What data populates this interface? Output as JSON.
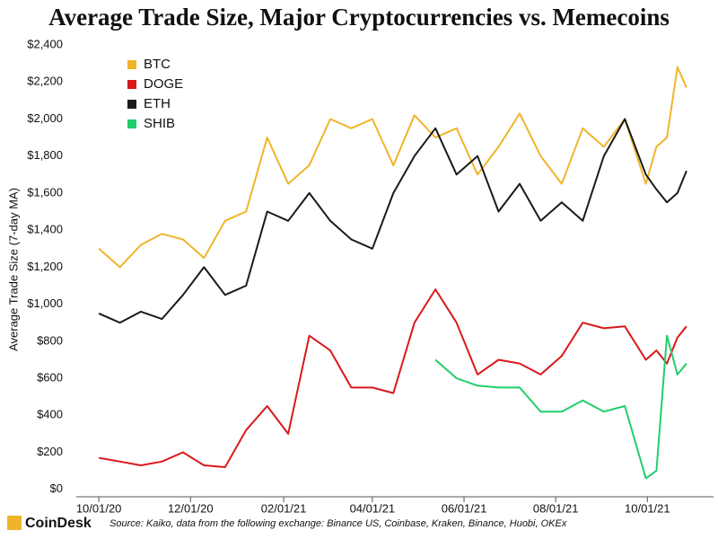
{
  "chart_data": {
    "type": "line",
    "title": "Average Trade Size, Major Cryptocurrencies vs. Memecoins",
    "y_label": "Average Trade Size (7-day MA)",
    "source": "Source: Kaiko, data from the following exchange: Binance US, Coinbase, Kraken, Binance, Huobi, OKEx",
    "brand": "CoinDesk",
    "x": [
      "2020-10-01",
      "2020-10-15",
      "2020-10-29",
      "2020-11-12",
      "2020-11-26",
      "2020-12-10",
      "2020-12-24",
      "2021-01-07",
      "2021-01-21",
      "2021-02-04",
      "2021-02-18",
      "2021-03-04",
      "2021-03-18",
      "2021-04-01",
      "2021-04-15",
      "2021-04-29",
      "2021-05-13",
      "2021-05-27",
      "2021-06-10",
      "2021-06-24",
      "2021-07-08",
      "2021-07-22",
      "2021-08-05",
      "2021-08-19",
      "2021-09-02",
      "2021-09-16",
      "2021-09-30",
      "2021-10-07",
      "2021-10-14",
      "2021-10-21",
      "2021-10-27"
    ],
    "series": [
      {
        "name": "BTC",
        "color": "#f0b42a",
        "values": [
          1300,
          1200,
          1320,
          1380,
          1350,
          1250,
          1450,
          1500,
          1900,
          1650,
          1750,
          2000,
          1950,
          2000,
          1750,
          2020,
          1900,
          1950,
          1700,
          1850,
          2030,
          1800,
          1650,
          1950,
          1850,
          2000,
          1650,
          1850,
          1900,
          2280,
          2170
        ]
      },
      {
        "name": "DOGE",
        "color": "#d8191c",
        "values": [
          170,
          150,
          130,
          150,
          200,
          130,
          120,
          320,
          450,
          300,
          830,
          750,
          550,
          550,
          520,
          900,
          1080,
          900,
          620,
          700,
          680,
          620,
          720,
          900,
          870,
          880,
          700,
          750,
          680,
          820,
          880
        ]
      },
      {
        "name": "ETH",
        "color": "#1a1a1a",
        "values": [
          950,
          900,
          960,
          920,
          1050,
          1200,
          1050,
          1100,
          1500,
          1450,
          1600,
          1450,
          1350,
          1300,
          1600,
          1800,
          1950,
          1700,
          1800,
          1500,
          1650,
          1450,
          1550,
          1450,
          1800,
          2000,
          1700,
          1620,
          1550,
          1600,
          1720
        ]
      },
      {
        "name": "SHIB",
        "color": "#1fcf6a",
        "values": [
          null,
          null,
          null,
          null,
          null,
          null,
          null,
          null,
          null,
          null,
          null,
          null,
          null,
          null,
          null,
          null,
          700,
          600,
          560,
          550,
          550,
          420,
          420,
          480,
          420,
          450,
          60,
          100,
          830,
          620,
          680
        ]
      }
    ],
    "xlim": [
      "2020-09-16",
      "2021-11-14"
    ],
    "xticks": [
      {
        "value": "2020-10-01",
        "label": "10/01/20"
      },
      {
        "value": "2020-12-01",
        "label": "12/01/20"
      },
      {
        "value": "2021-02-01",
        "label": "02/01/21"
      },
      {
        "value": "2021-04-01",
        "label": "04/01/21"
      },
      {
        "value": "2021-06-01",
        "label": "06/01/21"
      },
      {
        "value": "2021-08-01",
        "label": "08/01/21"
      },
      {
        "value": "2021-10-01",
        "label": "10/01/21"
      }
    ],
    "ylim": [
      -40,
      2400
    ],
    "yticks": [
      {
        "value": 0,
        "label": "$0"
      },
      {
        "value": 200,
        "label": "$200"
      },
      {
        "value": 400,
        "label": "$400"
      },
      {
        "value": 600,
        "label": "$600"
      },
      {
        "value": 800,
        "label": "$800"
      },
      {
        "value": 1000,
        "label": "$1,000"
      },
      {
        "value": 1200,
        "label": "$1,200"
      },
      {
        "value": 1400,
        "label": "$1,400"
      },
      {
        "value": 1600,
        "label": "$1,600"
      },
      {
        "value": 1800,
        "label": "$1,800"
      },
      {
        "value": 2000,
        "label": "$2,000"
      },
      {
        "value": 2200,
        "label": "$2,200"
      },
      {
        "value": 2400,
        "label": "$2,400"
      }
    ],
    "grid": false,
    "legend": "top-left"
  }
}
